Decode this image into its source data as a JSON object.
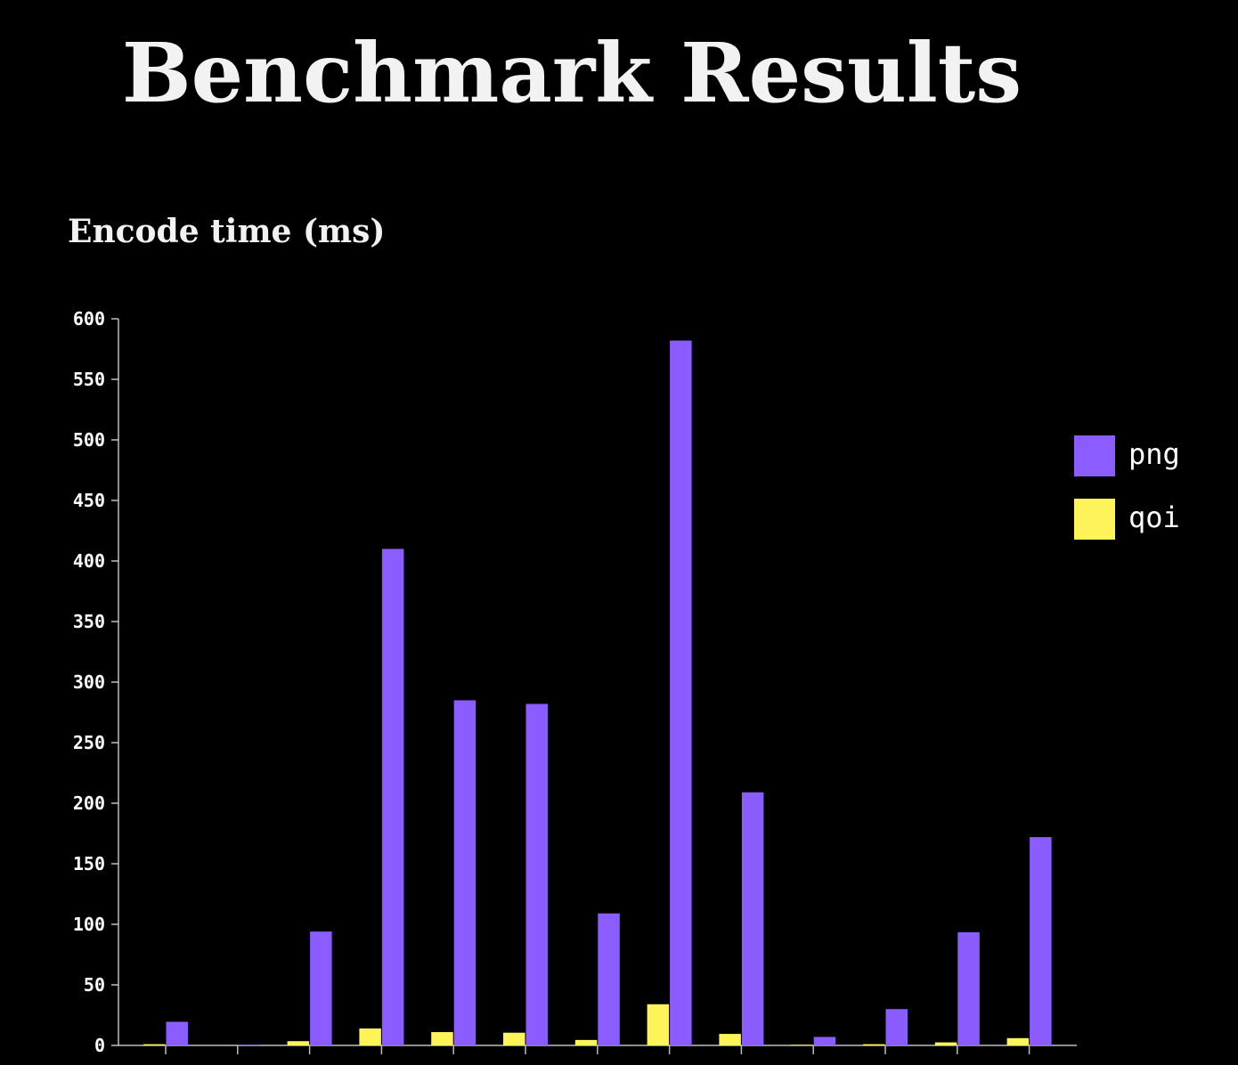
{
  "page": {
    "title": "Benchmark Results"
  },
  "chart_data": {
    "type": "bar",
    "title": "Encode time (ms)",
    "xlabel": "",
    "ylabel": "",
    "ylim": [
      0,
      600
    ],
    "yticks": [
      0,
      50,
      100,
      150,
      200,
      250,
      300,
      350,
      400,
      450,
      500,
      550,
      600
    ],
    "categories": [
      "",
      "",
      "",
      "",
      "",
      "",
      "",
      "",
      "",
      "",
      "",
      "",
      ""
    ],
    "series": [
      {
        "name": "qoi",
        "color": "#fff35a",
        "values": [
          1,
          0,
          3.5,
          14,
          11,
          10.5,
          4.5,
          34,
          9.5,
          0.5,
          1,
          2.5,
          6
        ]
      },
      {
        "name": "png",
        "color": "#8b5cff",
        "values": [
          19.5,
          0.5,
          94,
          410,
          285,
          282,
          109,
          582,
          209,
          7,
          30,
          93.5,
          172
        ]
      }
    ],
    "legend_position": "right",
    "legend_order": [
      "png",
      "qoi"
    ],
    "grid": false
  }
}
